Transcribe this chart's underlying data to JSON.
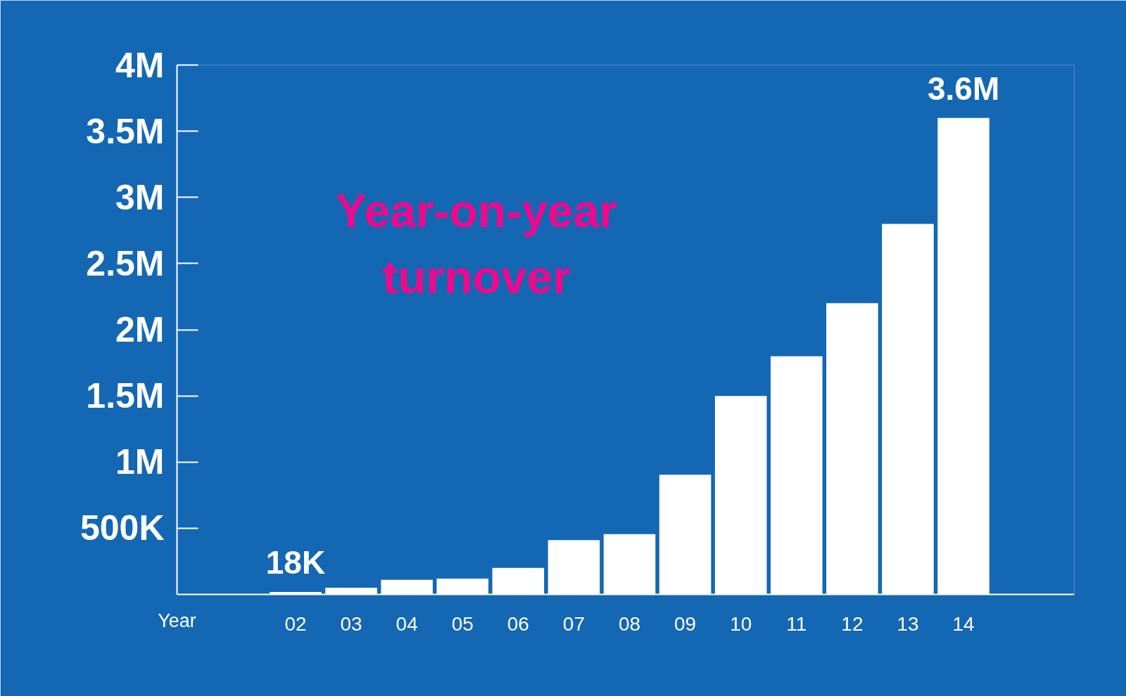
{
  "chart_data": {
    "type": "bar",
    "title": "Year-on-year turnover",
    "xlabel": "Year",
    "categories": [
      "02",
      "03",
      "04",
      "05",
      "06",
      "07",
      "08",
      "09",
      "10",
      "11",
      "12",
      "13",
      "14"
    ],
    "values": [
      18000,
      50000,
      110000,
      120000,
      200000,
      410000,
      455000,
      905000,
      1500000,
      1800000,
      2200000,
      2800000,
      3600000
    ],
    "value_labels": [
      "18K",
      null,
      null,
      null,
      null,
      null,
      null,
      null,
      null,
      null,
      null,
      null,
      "3.6M"
    ],
    "color": "#ffffff",
    "ylim": [
      0,
      4000000
    ],
    "yticks": [
      {
        "value": 500000,
        "label": "500K"
      },
      {
        "value": 1000000,
        "label": "1M"
      },
      {
        "value": 1500000,
        "label": "1.5M"
      },
      {
        "value": 2000000,
        "label": "2M"
      },
      {
        "value": 2500000,
        "label": "2.5M"
      },
      {
        "value": 3000000,
        "label": "3M"
      },
      {
        "value": 3500000,
        "label": "3.5M"
      },
      {
        "value": 4000000,
        "label": "4M"
      }
    ],
    "grid": false
  }
}
